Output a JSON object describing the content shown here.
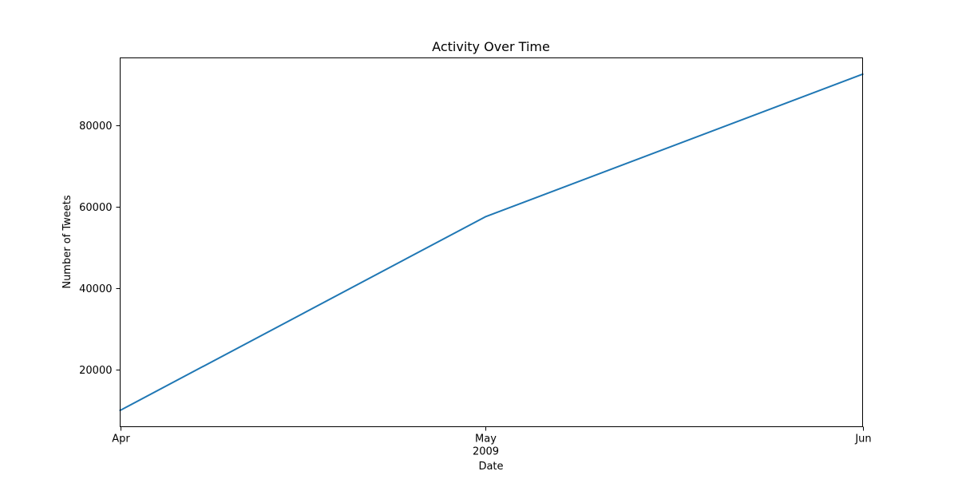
{
  "chart_data": {
    "type": "line",
    "title": "Activity Over Time",
    "xlabel": "Date",
    "ylabel": "Number of Tweets",
    "x_ticks": [
      {
        "date": "2009-04-01",
        "label": "Apr",
        "sublabel": ""
      },
      {
        "date": "2009-05-01",
        "label": "May",
        "sublabel": "2009"
      },
      {
        "date": "2009-06-01",
        "label": "Jun",
        "sublabel": ""
      }
    ],
    "y_ticks": [
      20000,
      40000,
      60000,
      80000
    ],
    "ylim": [
      6000,
      96500
    ],
    "xlim": [
      "2009-04-01",
      "2009-06-01"
    ],
    "grid": false,
    "series": [
      {
        "color": "#1f77b4",
        "points": [
          {
            "x": "2009-04-01",
            "y": 10000
          },
          {
            "x": "2009-05-01",
            "y": 57500
          },
          {
            "x": "2009-06-01",
            "y": 92500
          }
        ]
      }
    ]
  }
}
